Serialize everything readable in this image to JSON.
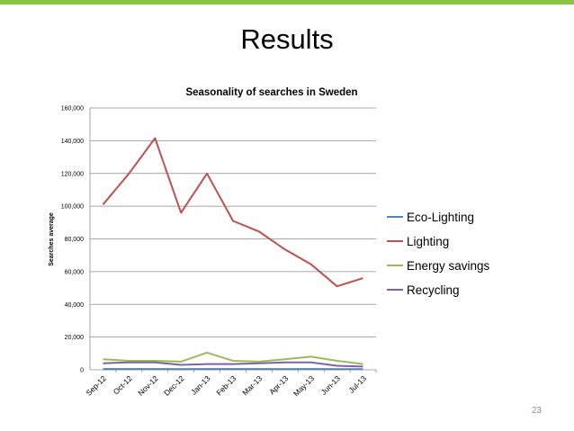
{
  "slide": {
    "title": "Results",
    "page_number": "23",
    "accent_color": "#8DC63F"
  },
  "chart_data": {
    "type": "line",
    "title": "Seasonality of searches in Sweden",
    "xlabel": "",
    "ylabel": "Searches average",
    "ylim": [
      0,
      160000
    ],
    "yticks": [
      "0",
      "20,000",
      "40,000",
      "60,000",
      "80,000",
      "100,000",
      "120,000",
      "140,000",
      "160,000"
    ],
    "categories": [
      "Sep-12",
      "Oct-12",
      "Nov-12",
      "Dec-12",
      "Jan-13",
      "Feb-13",
      "Mar-13",
      "Apr-13",
      "May-13",
      "Jun-13",
      "Jul-13"
    ],
    "grid": true,
    "legend_position": "right",
    "series": [
      {
        "name": "Eco-Lighting",
        "color": "#4F81BD",
        "values": [
          500,
          500,
          500,
          400,
          500,
          500,
          500,
          400,
          500,
          400,
          400
        ]
      },
      {
        "name": "Lighting",
        "color": "#C0504D",
        "values": [
          101000,
          120000,
          141500,
          96000,
          120000,
          91000,
          84500,
          73500,
          64500,
          51000,
          56000
        ]
      },
      {
        "name": "Energy savings",
        "color": "#9BBB59",
        "values": [
          6500,
          5500,
          5500,
          5000,
          10500,
          5500,
          5000,
          6500,
          8000,
          5500,
          3500
        ]
      },
      {
        "name": "Recycling",
        "color": "#8064A2",
        "values": [
          4000,
          4500,
          4500,
          3000,
          3500,
          3500,
          4000,
          4500,
          4500,
          2500,
          2000
        ]
      }
    ]
  }
}
